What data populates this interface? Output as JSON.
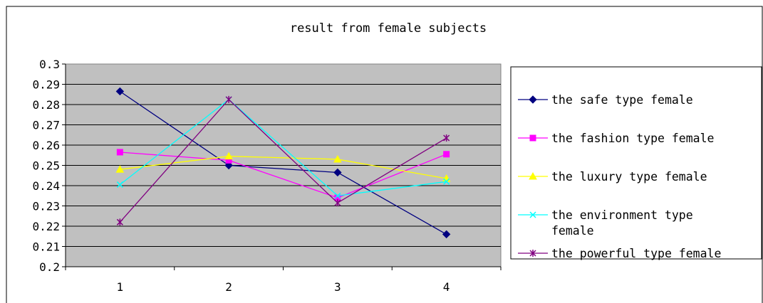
{
  "chart_data": {
    "type": "line",
    "title": "result from female subjects",
    "x": [
      "1",
      "2",
      "3",
      "4"
    ],
    "ylim": [
      0.2,
      0.3
    ],
    "y_ticks": [
      "0.2",
      "0.21",
      "0.22",
      "0.23",
      "0.24",
      "0.25",
      "0.26",
      "0.27",
      "0.28",
      "0.29",
      "0.3"
    ],
    "grid": true,
    "legend_position": "right",
    "plot_background": "#c0c0c0",
    "series": [
      {
        "name": "the safe type female",
        "legend_lines": [
          "the safe type female"
        ],
        "color": "#000080",
        "marker": "diamond",
        "values": [
          0.2865,
          0.25,
          0.2465,
          0.216
        ]
      },
      {
        "name": "the fashion type female",
        "legend_lines": [
          "the fashion type female"
        ],
        "color": "#ff00ff",
        "marker": "square",
        "values": [
          0.2565,
          0.2525,
          0.234,
          0.2555
        ]
      },
      {
        "name": "the luxury type female",
        "legend_lines": [
          "the luxury type female"
        ],
        "color": "#ffff00",
        "marker": "triangle",
        "values": [
          0.248,
          0.2545,
          0.253,
          0.2435
        ]
      },
      {
        "name": "the environment type female",
        "legend_lines": [
          "the environment type",
          "female"
        ],
        "color": "#00ffff",
        "marker": "x",
        "values": [
          0.2405,
          0.2825,
          0.235,
          0.242
        ]
      },
      {
        "name": "the powerful type female",
        "legend_lines": [
          "the powerful type female"
        ],
        "color": "#800080",
        "marker": "star",
        "values": [
          0.222,
          0.2825,
          0.2315,
          0.2635
        ]
      }
    ]
  }
}
